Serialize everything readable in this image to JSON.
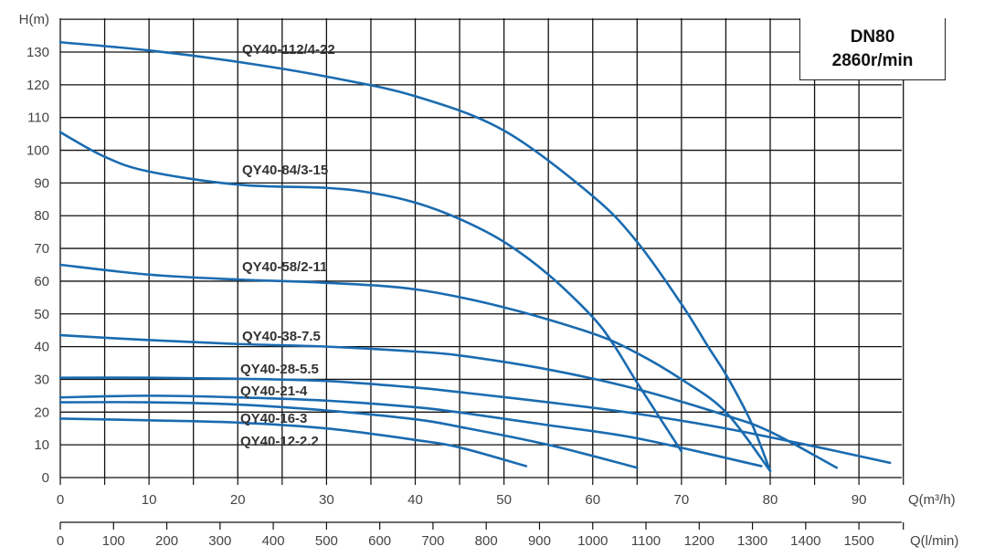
{
  "chart_data": {
    "type": "line",
    "title": "DN80 2860r/min",
    "info_box": {
      "line1": "DN80",
      "line2": "2860r/min"
    },
    "xlabel": "Q(m³/h)",
    "xlabel2": "Q(l/min)",
    "ylabel": "H(m)",
    "xlim": [
      0,
      95
    ],
    "ylim": [
      0,
      140
    ],
    "x_ticks": [
      0,
      10,
      20,
      30,
      40,
      50,
      60,
      70,
      80,
      90
    ],
    "x2_ticks": [
      0,
      100,
      200,
      300,
      400,
      500,
      600,
      700,
      800,
      900,
      1000,
      1100,
      1200,
      1300,
      1400,
      1500
    ],
    "y_ticks": [
      0,
      10,
      20,
      30,
      40,
      50,
      60,
      70,
      80,
      90,
      100,
      110,
      120,
      130
    ],
    "grid": true,
    "series": [
      {
        "name": "QY40-112/4-22",
        "points": [
          [
            0,
            133
          ],
          [
            10,
            130.5
          ],
          [
            20,
            127
          ],
          [
            30,
            122.5
          ],
          [
            40,
            116.5
          ],
          [
            50,
            106
          ],
          [
            60,
            86
          ],
          [
            65,
            72
          ],
          [
            70,
            53
          ],
          [
            73,
            40
          ],
          [
            75.2,
            30.6
          ],
          [
            77.9,
            16.6
          ],
          [
            80,
            2
          ]
        ]
      },
      {
        "name": "QY40-84/3-15",
        "points": [
          [
            0,
            105.5
          ],
          [
            5,
            98
          ],
          [
            10,
            93.5
          ],
          [
            20,
            89.5
          ],
          [
            30,
            88.5
          ],
          [
            35,
            87
          ],
          [
            40,
            84
          ],
          [
            45,
            79
          ],
          [
            50,
            72
          ],
          [
            55,
            62
          ],
          [
            60,
            49
          ],
          [
            62.5,
            40
          ],
          [
            65,
            29
          ],
          [
            70,
            8
          ]
        ]
      },
      {
        "name": "QY40-58/2-11",
        "points": [
          [
            0,
            65
          ],
          [
            10,
            62
          ],
          [
            20,
            60.5
          ],
          [
            30,
            59.5
          ],
          [
            40,
            57.5
          ],
          [
            50,
            52
          ],
          [
            60,
            44
          ],
          [
            65,
            38
          ],
          [
            70,
            30
          ],
          [
            75,
            20
          ],
          [
            80,
            2
          ]
        ]
      },
      {
        "name": "QY40-38-7.5",
        "points": [
          [
            0,
            43.5
          ],
          [
            10,
            42
          ],
          [
            20,
            40.8
          ],
          [
            30,
            40
          ],
          [
            40,
            38.5
          ],
          [
            45,
            37.3
          ],
          [
            55,
            33
          ],
          [
            65,
            27
          ],
          [
            75,
            19
          ],
          [
            80,
            14
          ],
          [
            87.5,
            3
          ]
        ]
      },
      {
        "name": "QY40-28-5.5",
        "points": [
          [
            0,
            30.5
          ],
          [
            10,
            30.5
          ],
          [
            20,
            30.2
          ],
          [
            30,
            29.5
          ],
          [
            40,
            27.5
          ],
          [
            45,
            26.1
          ],
          [
            55,
            23
          ],
          [
            65,
            19.5
          ],
          [
            75,
            15
          ],
          [
            85,
            9.5
          ],
          [
            93.5,
            4.5
          ]
        ]
      },
      {
        "name": "QY40-21-4",
        "points": [
          [
            0,
            24.5
          ],
          [
            10,
            25
          ],
          [
            20,
            24.5
          ],
          [
            30,
            23.5
          ],
          [
            40,
            21.5
          ],
          [
            45,
            19.9
          ],
          [
            55,
            16
          ],
          [
            65,
            12
          ],
          [
            79,
            3.5
          ]
        ]
      },
      {
        "name": "QY40-16-3",
        "points": [
          [
            0,
            23
          ],
          [
            10,
            23
          ],
          [
            20,
            22.3
          ],
          [
            30,
            20.5
          ],
          [
            40,
            17.8
          ],
          [
            45,
            15.5
          ],
          [
            55,
            10
          ],
          [
            65,
            3
          ]
        ]
      },
      {
        "name": "QY40-12-2.2",
        "points": [
          [
            0,
            18
          ],
          [
            10,
            17.5
          ],
          [
            20,
            16.8
          ],
          [
            30,
            15
          ],
          [
            40,
            11.5
          ],
          [
            45,
            9.2
          ],
          [
            52.5,
            3.5
          ]
        ]
      }
    ],
    "line_color": "#1a6bb0"
  }
}
